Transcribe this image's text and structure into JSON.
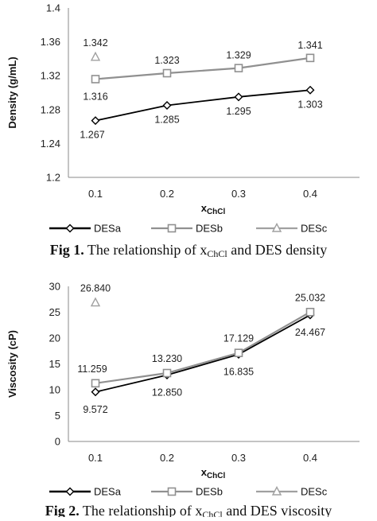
{
  "chart_data": [
    {
      "type": "line",
      "x": [
        0.1,
        0.2,
        0.3,
        0.4
      ],
      "xticks": [
        "0.1",
        "0.2",
        "0.3",
        "0.4"
      ],
      "ylim": [
        1.2,
        1.4
      ],
      "yticks": [
        "1.2",
        "1.24",
        "1.28",
        "1.32",
        "1.36",
        "1.4"
      ],
      "ylabel": "Density (g/mL)",
      "xlabel_main": "x",
      "xlabel_sub": "ChCl",
      "legend_position": "bottom",
      "series": [
        {
          "name": "DESa",
          "marker": "diamond",
          "color": "#000000",
          "values": [
            1.267,
            1.285,
            1.295,
            1.303
          ],
          "labels": [
            "1.267",
            "1.285",
            "1.295",
            "1.303"
          ]
        },
        {
          "name": "DESb",
          "marker": "square",
          "color": "#909090",
          "values": [
            1.316,
            1.323,
            1.329,
            1.341
          ],
          "labels": [
            "1.316",
            "1.323",
            "1.329",
            "1.341"
          ]
        },
        {
          "name": "DESc",
          "marker": "triangle",
          "color": "#a0a0a0",
          "values": [
            1.342,
            null,
            null,
            null
          ],
          "labels": [
            "1.342",
            "",
            "",
            ""
          ]
        }
      ],
      "caption": {
        "bold": "Fig 1.",
        "pre": " The relationship of x",
        "sub": "ChCl",
        "post": " and DES density"
      }
    },
    {
      "type": "line",
      "x": [
        0.1,
        0.2,
        0.3,
        0.4
      ],
      "xticks": [
        "0.1",
        "0.2",
        "0.3",
        "0.4"
      ],
      "ylim": [
        0,
        30
      ],
      "yticks": [
        "0",
        "5",
        "10",
        "15",
        "20",
        "25",
        "30"
      ],
      "ylabel": "Viscosity (cP)",
      "xlabel_main": "x",
      "xlabel_sub": "ChCl",
      "legend_position": "bottom",
      "series": [
        {
          "name": "DESa",
          "marker": "diamond",
          "color": "#000000",
          "values": [
            9.572,
            12.85,
            16.835,
            24.467
          ],
          "labels": [
            "9.572",
            "12.850",
            "16.835",
            "24.467"
          ]
        },
        {
          "name": "DESb",
          "marker": "square",
          "color": "#909090",
          "values": [
            11.259,
            13.23,
            17.129,
            25.032
          ],
          "labels": [
            "11.259",
            "13.230",
            "17.129",
            "25.032"
          ]
        },
        {
          "name": "DESc",
          "marker": "triangle",
          "color": "#a0a0a0",
          "values": [
            26.84,
            null,
            null,
            null
          ],
          "labels": [
            "26.840",
            "",
            "",
            ""
          ]
        }
      ],
      "caption": {
        "bold": "Fig 2.",
        "pre": " The relationship of x",
        "sub": "ChCl",
        "post": " and DES viscosity"
      }
    }
  ]
}
